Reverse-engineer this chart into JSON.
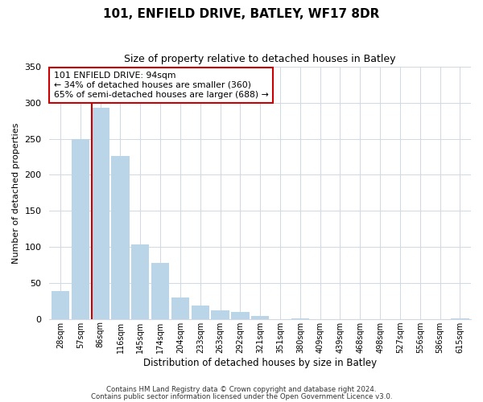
{
  "title": "101, ENFIELD DRIVE, BATLEY, WF17 8DR",
  "subtitle": "Size of property relative to detached houses in Batley",
  "xlabel": "Distribution of detached houses by size in Batley",
  "ylabel": "Number of detached properties",
  "bar_labels": [
    "28sqm",
    "57sqm",
    "86sqm",
    "116sqm",
    "145sqm",
    "174sqm",
    "204sqm",
    "233sqm",
    "263sqm",
    "292sqm",
    "321sqm",
    "351sqm",
    "380sqm",
    "409sqm",
    "439sqm",
    "468sqm",
    "498sqm",
    "527sqm",
    "556sqm",
    "586sqm",
    "615sqm"
  ],
  "bar_values": [
    39,
    250,
    293,
    226,
    103,
    78,
    30,
    19,
    12,
    10,
    4,
    0,
    1,
    0,
    0,
    0,
    0,
    0,
    0,
    0,
    1
  ],
  "bar_color": "#bad4e8",
  "vline_x_index": 2,
  "vline_color": "#cc0000",
  "annotation_title": "101 ENFIELD DRIVE: 94sqm",
  "annotation_line1": "← 34% of detached houses are smaller (360)",
  "annotation_line2": "65% of semi-detached houses are larger (688) →",
  "annotation_box_color": "#ffffff",
  "annotation_box_edge": "#cc0000",
  "ylim": [
    0,
    350
  ],
  "yticks": [
    0,
    50,
    100,
    150,
    200,
    250,
    300,
    350
  ],
  "footer1": "Contains HM Land Registry data © Crown copyright and database right 2024.",
  "footer2": "Contains public sector information licensed under the Open Government Licence v3.0.",
  "background_color": "#ffffff",
  "grid_color": "#d0d8e4"
}
